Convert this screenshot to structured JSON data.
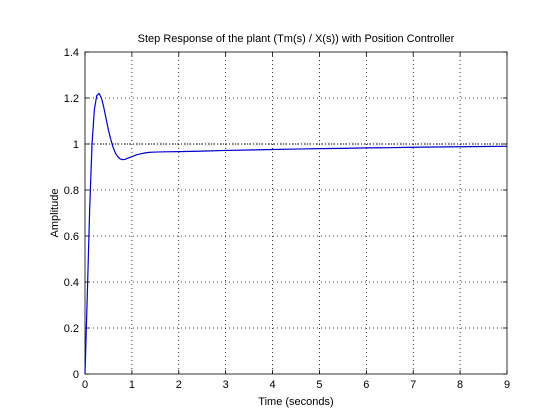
{
  "chart_data": {
    "type": "line",
    "title": "Step Response of the plant (Tm(s) / X(s)) with Position Controller",
    "xlabel": "Time (seconds)",
    "ylabel": "Amplitude",
    "xlim": [
      0,
      9
    ],
    "ylim": [
      0,
      1.4
    ],
    "xticks": [
      "0",
      "1",
      "2",
      "3",
      "4",
      "5",
      "6",
      "7",
      "8",
      "9"
    ],
    "yticks": [
      "0",
      "0.2",
      "0.4",
      "0.6",
      "0.8",
      "1",
      "1.2",
      "1.4"
    ],
    "grid": true,
    "reference_line": {
      "y": 1,
      "style": "dotted"
    },
    "series": [
      {
        "color": "#0000c8",
        "x": [
          0,
          0.05,
          0.1,
          0.15,
          0.2,
          0.25,
          0.3,
          0.35,
          0.4,
          0.45,
          0.5,
          0.55,
          0.6,
          0.65,
          0.7,
          0.75,
          0.8,
          0.85,
          0.9,
          1.0,
          1.1,
          1.2,
          1.3,
          1.4,
          1.5,
          1.7,
          2.0,
          2.5,
          3.0,
          3.5,
          4.0,
          4.5,
          5.0,
          5.5,
          6.0,
          6.5,
          7.0,
          7.5,
          8.0,
          8.5,
          9.0
        ],
        "y": [
          0,
          0.35,
          0.72,
          1.0,
          1.15,
          1.21,
          1.22,
          1.2,
          1.16,
          1.11,
          1.06,
          1.02,
          0.985,
          0.96,
          0.945,
          0.935,
          0.932,
          0.933,
          0.937,
          0.945,
          0.953,
          0.958,
          0.962,
          0.964,
          0.965,
          0.966,
          0.967,
          0.969,
          0.972,
          0.974,
          0.976,
          0.978,
          0.98,
          0.981,
          0.983,
          0.984,
          0.986,
          0.987,
          0.988,
          0.989,
          0.99
        ]
      }
    ]
  }
}
